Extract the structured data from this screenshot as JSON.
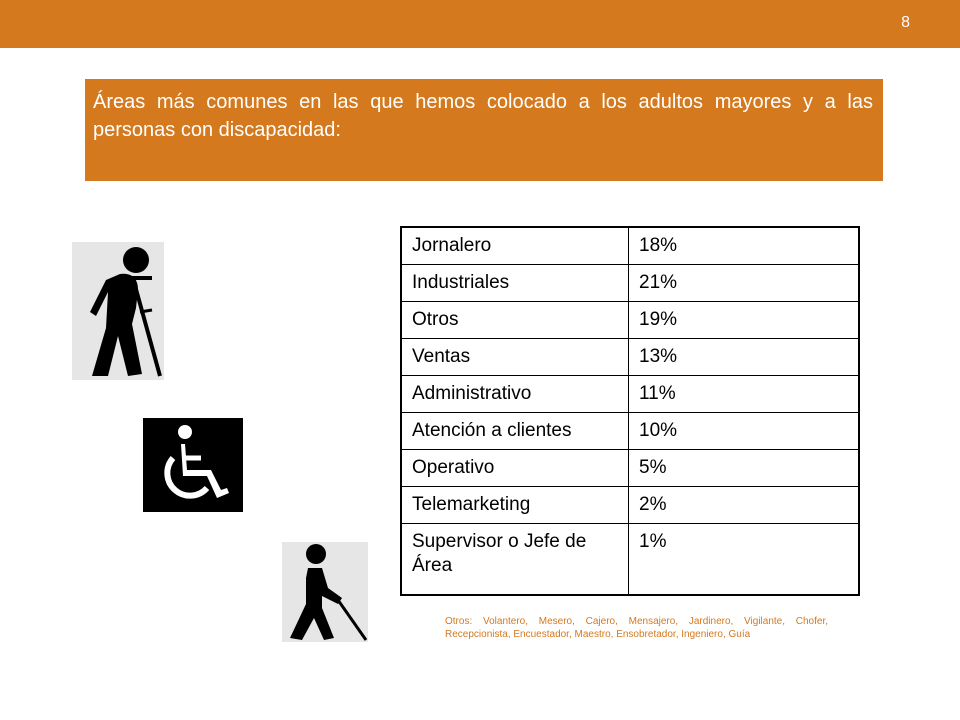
{
  "header": {
    "page_number": "8",
    "accent_color": "#d4791d"
  },
  "title": "Áreas más comunes en las que hemos colocado a los adultos mayores y a las personas con discapacidad:",
  "table": {
    "rows": [
      {
        "area": "Jornalero",
        "percent": "18%"
      },
      {
        "area": "Industriales",
        "percent": "21%"
      },
      {
        "area": "Otros",
        "percent": "19%"
      },
      {
        "area": "Ventas",
        "percent": "13%"
      },
      {
        "area": "Administrativo",
        "percent": "11%"
      },
      {
        "area": "Atención a clientes",
        "percent": "10%"
      },
      {
        "area": "Operativo",
        "percent": "5%"
      },
      {
        "area": "Telemarketing",
        "percent": "2%"
      },
      {
        "area": "Supervisor  o Jefe de Área",
        "percent": "1%"
      }
    ]
  },
  "footnote": "Otros: Volantero, Mesero, Cajero, Mensajero, Jardinero, Vigilante, Chofer, Recepcionista, Encuestador, Maestro, Ensobretador, Ingeniero, Guía",
  "icons": [
    "person-with-crutch-icon",
    "wheelchair-icon",
    "person-with-cane-icon"
  ]
}
